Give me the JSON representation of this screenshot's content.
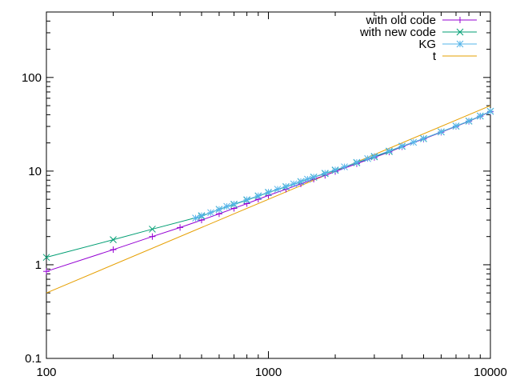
{
  "chart_data": {
    "type": "line",
    "xscale": "log",
    "yscale": "log",
    "xlim": [
      100,
      10000
    ],
    "ylim": [
      0.1,
      500
    ],
    "grid": false,
    "legend_position": "top-right",
    "xticks": [
      {
        "value": 100,
        "label": "100"
      },
      {
        "value": 1000,
        "label": "1000"
      },
      {
        "value": 10000,
        "label": "10000"
      }
    ],
    "yticks": [
      {
        "value": 0.1,
        "label": "0.1"
      },
      {
        "value": 1,
        "label": "1"
      },
      {
        "value": 10,
        "label": "10"
      },
      {
        "value": 100,
        "label": "100"
      }
    ],
    "series": [
      {
        "name": "with old code",
        "color": "#9400d3",
        "marker": "plus",
        "x": [
          100,
          200,
          300,
          400,
          500,
          600,
          700,
          800,
          900,
          1000,
          1200,
          1400,
          1600,
          1800,
          2000,
          2500,
          3000,
          3500,
          4000,
          5000,
          6000,
          7000,
          8000,
          9000,
          10000
        ],
        "y": [
          0.85,
          1.45,
          2.0,
          2.5,
          3.0,
          3.5,
          4.0,
          4.5,
          5.0,
          5.5,
          6.4,
          7.3,
          8.2,
          9.0,
          9.9,
          12.0,
          14.0,
          16.0,
          18.2,
          22.0,
          26.0,
          30.0,
          34.0,
          38.5,
          43.0
        ]
      },
      {
        "name": "with new code",
        "color": "#009e73",
        "marker": "cross",
        "x": [
          100,
          200,
          300,
          500,
          600,
          700,
          800,
          900,
          1000,
          1200,
          1400,
          1600,
          1800,
          2000,
          2500,
          3000,
          3500,
          4000,
          5000,
          6000,
          7000,
          8000,
          9000,
          10000
        ],
        "y": [
          1.2,
          1.85,
          2.4,
          3.3,
          3.9,
          4.4,
          4.9,
          5.4,
          5.9,
          6.8,
          7.7,
          8.6,
          9.4,
          10.2,
          12.3,
          14.2,
          16.2,
          18.4,
          22.2,
          26.2,
          30.2,
          34.2,
          38.7,
          43.5
        ]
      },
      {
        "name": "KG",
        "color": "#56b4e9",
        "marker": "star",
        "x": [
          470,
          500,
          550,
          600,
          650,
          700,
          800,
          900,
          1000,
          1100,
          1200,
          1300,
          1400,
          1500,
          1600,
          1800,
          2000,
          2200,
          2500,
          2800,
          3000,
          3500,
          4000,
          4500,
          5000,
          6000,
          7000,
          8000,
          9000,
          10000
        ],
        "y": [
          3.15,
          3.35,
          3.6,
          3.9,
          4.2,
          4.45,
          4.95,
          5.45,
          5.95,
          6.4,
          6.85,
          7.3,
          7.75,
          8.2,
          8.65,
          9.5,
          10.3,
          11.1,
          12.4,
          13.6,
          14.4,
          16.4,
          18.5,
          20.3,
          22.3,
          26.3,
          30.3,
          34.3,
          38.8,
          43.5
        ]
      },
      {
        "name": "t",
        "color": "#e69f00",
        "marker": "none",
        "x": [
          100,
          10000
        ],
        "y": [
          0.5,
          50
        ]
      }
    ]
  }
}
